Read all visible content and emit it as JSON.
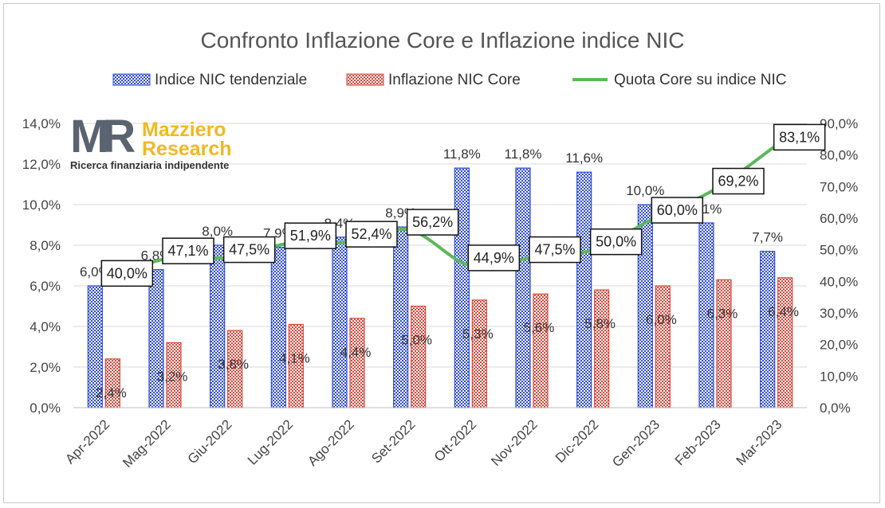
{
  "chart_data": {
    "type": "bar",
    "title": "Confronto Inflazione Core e Inflazione indice NIC",
    "categories": [
      "Apr-2022",
      "Mag-2022",
      "Giu-2022",
      "Lug-2022",
      "Ago-2022",
      "Set-2022",
      "Ott-2022",
      "Nov-2022",
      "Dic-2022",
      "Gen-2023",
      "Feb-2023",
      "Mar-2023"
    ],
    "series": [
      {
        "name": "Indice NIC tendenziale",
        "kind": "bar",
        "axis": "left",
        "color": "#2e4bd6",
        "values": [
          6.0,
          6.8,
          8.0,
          7.9,
          8.4,
          8.9,
          11.8,
          11.8,
          11.6,
          10.0,
          9.1,
          7.7
        ],
        "labels": [
          "6,0%",
          "6,8%",
          "8,0%",
          "7,9%",
          "8,4%",
          "8,9%",
          "11,8%",
          "11,8%",
          "11,6%",
          "10,0%",
          "9,1%",
          "7,7%"
        ]
      },
      {
        "name": "Inflazione NIC Core",
        "kind": "bar",
        "axis": "left",
        "color": "#d9463a",
        "values": [
          2.4,
          3.2,
          3.8,
          4.1,
          4.4,
          5.0,
          5.3,
          5.6,
          5.8,
          6.0,
          6.3,
          6.4
        ],
        "labels": [
          "2,4%",
          "3,2%",
          "3,8%",
          "4,1%",
          "4,4%",
          "5,0%",
          "5,3%",
          "5,6%",
          "5,8%",
          "6,0%",
          "6,3%",
          "6,4%"
        ]
      },
      {
        "name": "Quota Core su indice NIC",
        "kind": "line",
        "axis": "right",
        "color": "#5cb85c",
        "values": [
          40.0,
          47.1,
          47.5,
          51.9,
          52.4,
          56.2,
          44.9,
          47.5,
          50.0,
          60.0,
          69.2,
          83.1
        ],
        "labels": [
          "40,0%",
          "47,1%",
          "47,5%",
          "51,9%",
          "52,4%",
          "56,2%",
          "44,9%",
          "47,5%",
          "50,0%",
          "60,0%",
          "69,2%",
          "83,1%"
        ]
      }
    ],
    "y_left": {
      "range": [
        0,
        14
      ],
      "ticks": [
        0,
        2,
        4,
        6,
        8,
        10,
        12,
        14
      ],
      "tick_labels": [
        "0,0%",
        "2,0%",
        "4,0%",
        "6,0%",
        "8,0%",
        "10,0%",
        "12,0%",
        "14,0%"
      ]
    },
    "y_right": {
      "range": [
        0,
        90
      ],
      "ticks": [
        0,
        10,
        20,
        30,
        40,
        50,
        60,
        70,
        80,
        90
      ],
      "tick_labels": [
        "0,0%",
        "10,0%",
        "20,0%",
        "30,0%",
        "40,0%",
        "50,0%",
        "60,0%",
        "70,0%",
        "80,0%",
        "90,0%"
      ]
    },
    "grid": true,
    "legend_position": "top"
  },
  "logo": {
    "mark": "MR",
    "name_line1": "Mazziero",
    "name_line2": "Research",
    "tagline": "Ricerca finanziaria indipendente"
  }
}
